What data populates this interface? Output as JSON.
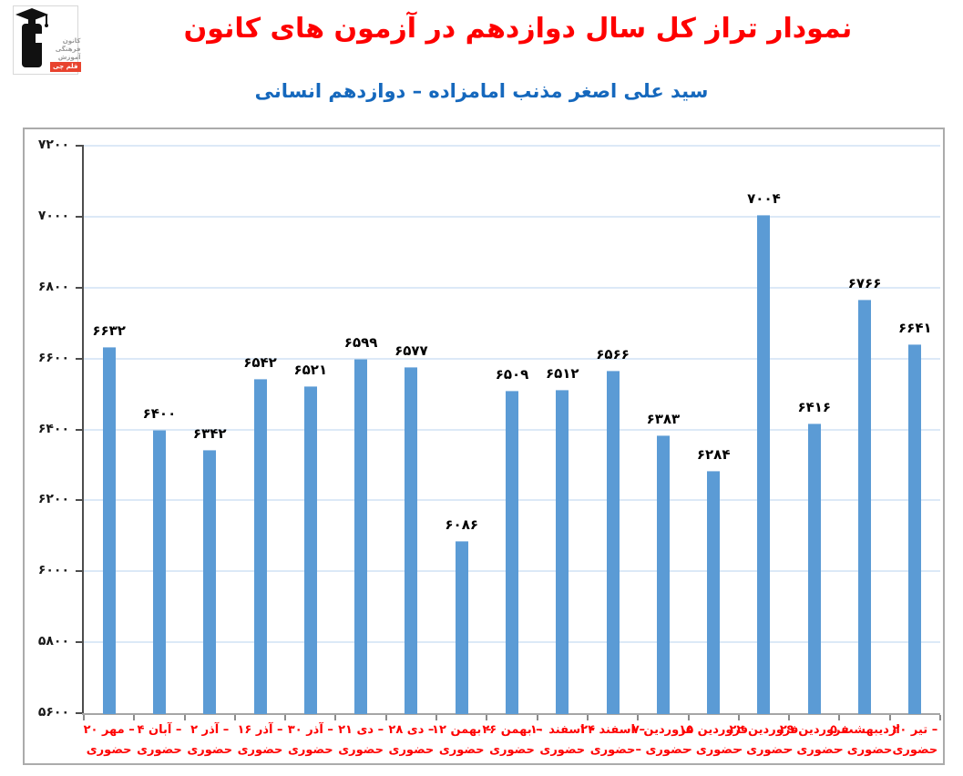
{
  "header": {
    "title": "نمودار تراز کل سال دوازدهم در آزمون های کانون",
    "subtitle": "سید علی اصغر مذنب امامزاده – دوازدهم انسانی",
    "title_color": "#fe0000",
    "subtitle_color": "#1568bd",
    "logo": {
      "line1": "کانون",
      "line2": "فرهنگی",
      "line3": "آموزش",
      "badge": "قلم چی"
    }
  },
  "chart_data": {
    "type": "bar",
    "title": "نمودار تراز کل سال دوازدهم در آزمون های کانون",
    "xlabel": "",
    "ylabel": "",
    "categories": [
      "۲۰ مهر – حضوری",
      "۴ آبان – حضوری",
      "۲ آذر – حضوری",
      "۱۶ آذر – حضوری",
      "۳۰ آذر – حضوری",
      "۲۱ دی – حضوری",
      "۲۸ دی – حضوری",
      "۱۲ بهمن – حضوری",
      "۲۶ بهمن – حضوری",
      "۱۰ اسفند – حضوری",
      "۲۴ اسفند – حضوری",
      "۷ فروردین – حضوری",
      "۱۵ فروردین – حضوری",
      "۲۲ فروردین – حضوری",
      "۲۹ فروردین – حضوری",
      "۵ اردیبهشت – حضوری",
      "۲۰ تیر – حضوری"
    ],
    "category_lines": [
      [
        "۲۰ مهر –",
        "حضوری"
      ],
      [
        "۴ آبان –",
        "حضوری"
      ],
      [
        "۲ آذر –",
        "حضوری"
      ],
      [
        "۱۶ آذر –",
        "حضوری"
      ],
      [
        "۳۰ آذر –",
        "حضوری"
      ],
      [
        "۲۱ دی –",
        "حضوری"
      ],
      [
        "۲۸ دی –",
        "حضوری"
      ],
      [
        "۱۲ بهمن –",
        "حضوری"
      ],
      [
        "۲۶ بهمن –",
        "حضوری"
      ],
      [
        "۱۰ اسفند –",
        "حضوری"
      ],
      [
        "۲۴ اسفند –",
        "حضوری"
      ],
      [
        "۷ فروردین",
        "– حضوری"
      ],
      [
        "۱۵ فروردین",
        "– حضوری"
      ],
      [
        "۲۲ فروردین",
        "– حضوری"
      ],
      [
        "۲۹ فروردین",
        "– حضوری"
      ],
      [
        "۵ اردیبهشت",
        "– حضوری"
      ],
      [
        "۲۰ تیر –",
        "حضوری"
      ]
    ],
    "values": [
      6632,
      6400,
      6342,
      6542,
      6521,
      6599,
      6577,
      6086,
      6509,
      6512,
      6566,
      6383,
      6284,
      7004,
      6416,
      6766,
      6641
    ],
    "value_labels": [
      "۶۶۳۲",
      "۶۴۰۰",
      "۶۳۴۲",
      "۶۵۴۲",
      "۶۵۲۱",
      "۶۵۹۹",
      "۶۵۷۷",
      "۶۰۸۶",
      "۶۵۰۹",
      "۶۵۱۲",
      "۶۵۶۶",
      "۶۳۸۳",
      "۶۲۸۴",
      "۷۰۰۴",
      "۶۴۱۶",
      "۶۷۶۶",
      "۶۶۴۱"
    ],
    "ylim": [
      5600,
      7200
    ],
    "yticks": [
      5600,
      5800,
      6000,
      6200,
      6400,
      6600,
      6800,
      7000,
      7200
    ],
    "ytick_labels": [
      "۵۶۰۰",
      "۵۸۰۰",
      "۶۰۰۰",
      "۶۲۰۰",
      "۶۴۰۰",
      "۶۶۰۰",
      "۶۸۰۰",
      "۷۰۰۰",
      "۷۲۰۰"
    ],
    "grid": true,
    "legend": "none",
    "bar_color": "#5b9bd5",
    "gridline_color": "#dce9f7",
    "category_label_color": "#fe0000",
    "value_label_color": "#000000"
  }
}
